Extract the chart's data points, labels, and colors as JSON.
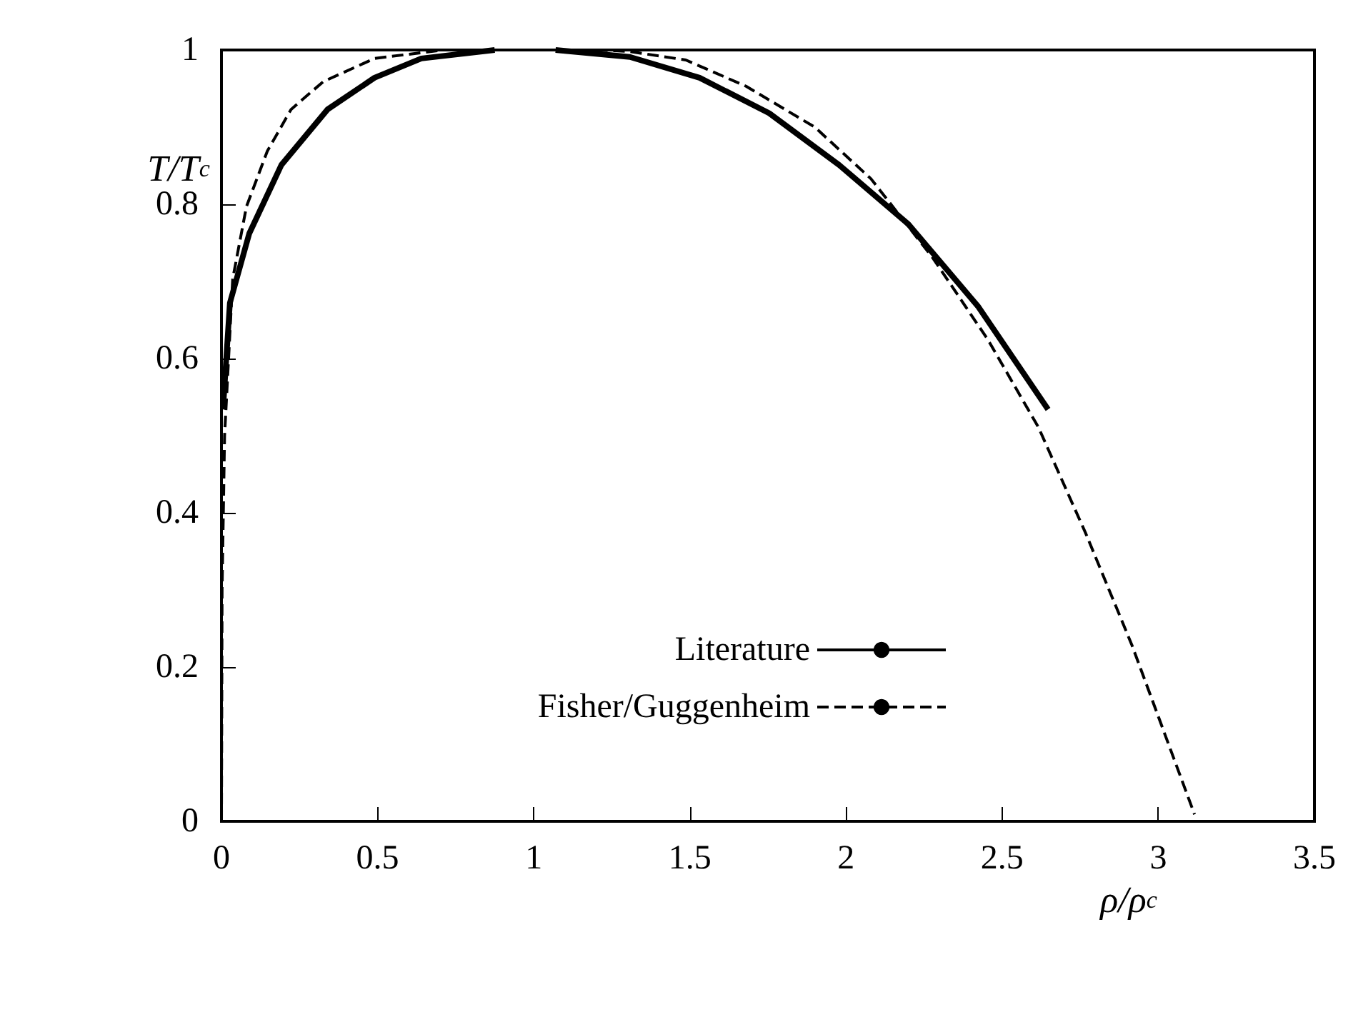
{
  "chart_data": {
    "type": "line",
    "xlabel": "ρ/ρ$_{c}$",
    "ylabel": "T/T$_{c}$",
    "xlim": [
      0,
      3.5
    ],
    "ylim": [
      0,
      1
    ],
    "xticks": [
      0,
      0.5,
      1,
      1.5,
      2,
      2.5,
      3,
      3.5
    ],
    "yticks": [
      0,
      0.2,
      0.4,
      0.6,
      0.8,
      1
    ],
    "grid": false,
    "legend": "bottom right",
    "marker": "none",
    "series": [
      {
        "name": "Literature",
        "color": "#000000",
        "line_style": "solid",
        "x": [
          0.005,
          0.027,
          0.089,
          0.192,
          0.34,
          0.49,
          0.64,
          0.875,
          null,
          1.07,
          1.308,
          1.531,
          1.754,
          1.978,
          2.2,
          2.424,
          2.647
        ],
        "values": [
          0.534,
          0.672,
          0.762,
          0.851,
          0.923,
          0.964,
          0.989,
          1.0,
          null,
          1.0,
          0.991,
          0.964,
          0.918,
          0.851,
          0.774,
          0.667,
          0.534
        ]
      },
      {
        "name": "Fisher/Guggenheim",
        "color": "#000000",
        "line_style": "dashed",
        "x": [
          0.0,
          0.002,
          0.01,
          0.036,
          0.08,
          0.147,
          0.223,
          0.326,
          0.49,
          0.71,
          null,
          1.2,
          1.308,
          1.487,
          1.68,
          1.9,
          2.08,
          2.277,
          2.455,
          2.616,
          2.768,
          2.915,
          3.116
        ],
        "values": [
          0.0,
          0.3,
          0.5,
          0.703,
          0.797,
          0.869,
          0.923,
          0.959,
          0.989,
          1.0,
          null,
          1.0,
          0.998,
          0.987,
          0.953,
          0.9,
          0.833,
          0.731,
          0.624,
          0.511,
          0.373,
          0.229,
          0.009
        ]
      }
    ]
  }
}
